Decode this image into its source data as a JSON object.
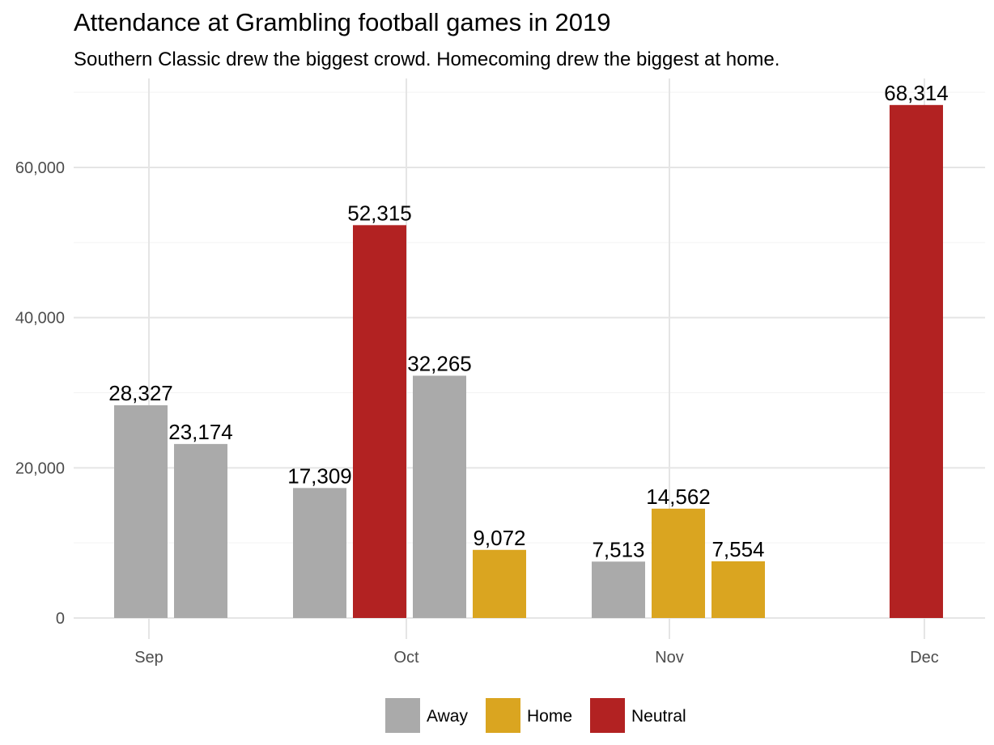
{
  "chart_data": {
    "type": "bar",
    "title": "Attendance at Grambling football games in 2019",
    "subtitle": "Southern Classic drew the biggest crowd. Homecoming drew the biggest at home.",
    "xlabel": "",
    "ylabel": "",
    "ylim": [
      0,
      70000
    ],
    "y_ticks": [
      0,
      20000,
      40000,
      60000
    ],
    "y_tick_labels": [
      "0",
      "20,000",
      "40,000",
      "60,000"
    ],
    "grid": true,
    "legend_position": "bottom",
    "categories": [
      "Sep",
      "Oct",
      "Nov",
      "Dec"
    ],
    "series": [
      {
        "name": "Away",
        "color": "#aaaaaa"
      },
      {
        "name": "Home",
        "color": "#daa520"
      },
      {
        "name": "Neutral",
        "color": "#b22222"
      }
    ],
    "bars": [
      {
        "month": "Sep",
        "type": "Away",
        "value": 28327,
        "label": "28,327"
      },
      {
        "month": "Sep",
        "type": "Away",
        "value": 23174,
        "label": "23,174"
      },
      {
        "month": "Oct",
        "type": "Away",
        "value": 17309,
        "label": "17,309"
      },
      {
        "month": "Oct",
        "type": "Neutral",
        "value": 52315,
        "label": "52,315"
      },
      {
        "month": "Oct",
        "type": "Away",
        "value": 32265,
        "label": "32,265"
      },
      {
        "month": "Oct",
        "type": "Home",
        "value": 9072,
        "label": "9,072"
      },
      {
        "month": "Nov",
        "type": "Away",
        "value": 7513,
        "label": "7,513"
      },
      {
        "month": "Nov",
        "type": "Home",
        "value": 14562,
        "label": "14,562"
      },
      {
        "month": "Nov",
        "type": "Home",
        "value": 7554,
        "label": "7,554"
      },
      {
        "month": "Dec",
        "type": "Neutral",
        "value": 68314,
        "label": "68,314"
      }
    ]
  }
}
